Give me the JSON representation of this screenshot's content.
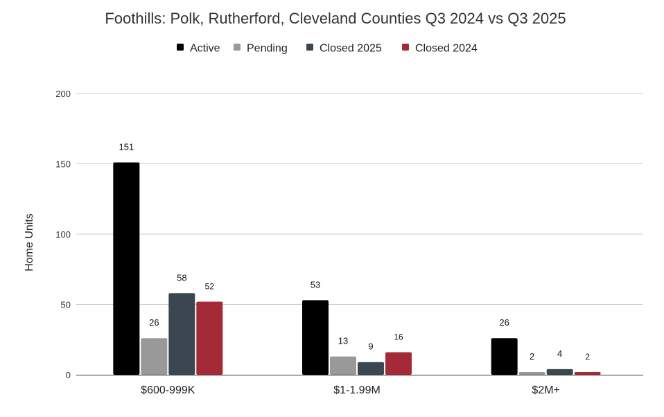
{
  "chart_data": {
    "type": "bar",
    "title": "Foothills: Polk, Rutherford, Cleveland Counties Q3 2024 vs Q3 2025",
    "xlabel": "",
    "ylabel": "Home Units",
    "ylim": [
      0,
      200
    ],
    "yticks": [
      "0",
      "50",
      "100",
      "150",
      "200"
    ],
    "grid": true,
    "legend_position": "top",
    "categories": [
      "$600-999K",
      "$1-1.99M",
      "$2M+"
    ],
    "series": [
      {
        "name": "Active",
        "color": "#000000",
        "values": [
          151,
          53,
          26
        ]
      },
      {
        "name": "Pending",
        "color": "#999999",
        "values": [
          26,
          13,
          2
        ]
      },
      {
        "name": "Closed 2025",
        "color": "#3c4650",
        "values": [
          58,
          9,
          4
        ]
      },
      {
        "name": "Closed 2024",
        "color": "#a52a37",
        "values": [
          52,
          16,
          2
        ]
      }
    ]
  }
}
